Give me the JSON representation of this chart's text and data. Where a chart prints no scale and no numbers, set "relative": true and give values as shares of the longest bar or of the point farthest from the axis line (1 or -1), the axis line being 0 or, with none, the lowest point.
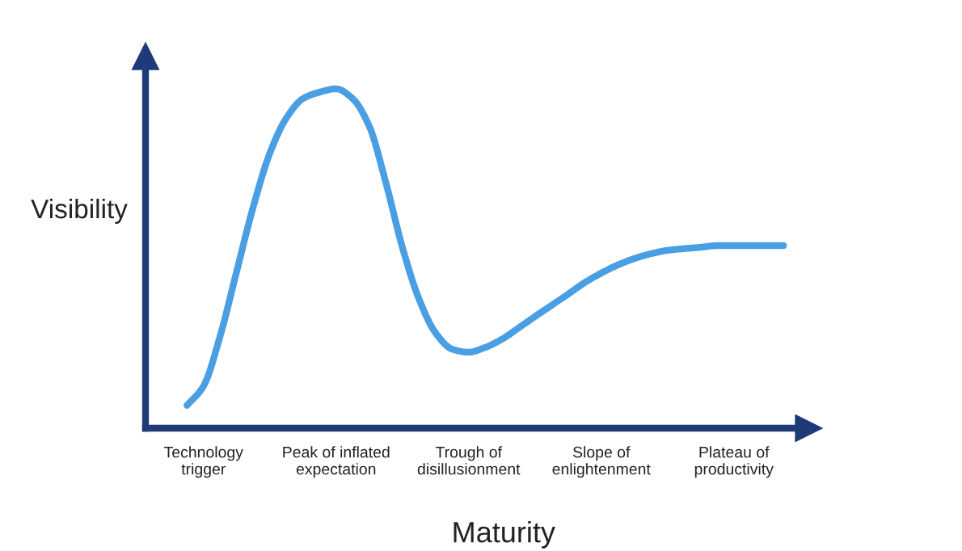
{
  "chart_data": {
    "type": "line",
    "relative": true,
    "xlabel": "Maturity",
    "ylabel": "Visibility",
    "categories": [
      null,
      null,
      "Technology\ntrigger",
      null,
      null,
      null,
      null,
      null,
      null,
      null,
      "Peak of inflated\nexpectation",
      null,
      null,
      null,
      null,
      null,
      null,
      null,
      "Trough of\ndisillusionment",
      null,
      null,
      null,
      null,
      null,
      null,
      null,
      "Slope of\nenlightenment",
      null,
      null,
      null,
      null,
      null,
      null,
      null,
      "Plateau of\nproductivity",
      null,
      null,
      null
    ],
    "series": [
      {
        "color": "#4a9fe3",
        "values": [
          null,
          0.067,
          0.124,
          0.271,
          0.462,
          0.652,
          0.81,
          0.914,
          0.971,
          0.99,
          1.0,
          0.971,
          0.89,
          0.724,
          0.533,
          0.381,
          0.281,
          0.233,
          0.224,
          0.238,
          0.262,
          0.295,
          0.329,
          0.362,
          0.395,
          0.429,
          0.457,
          0.481,
          0.5,
          0.514,
          0.524,
          0.529,
          0.533,
          0.538,
          0.538,
          0.538,
          0.538,
          0.538
        ]
      }
    ],
    "grid": false,
    "legend": false
  }
}
